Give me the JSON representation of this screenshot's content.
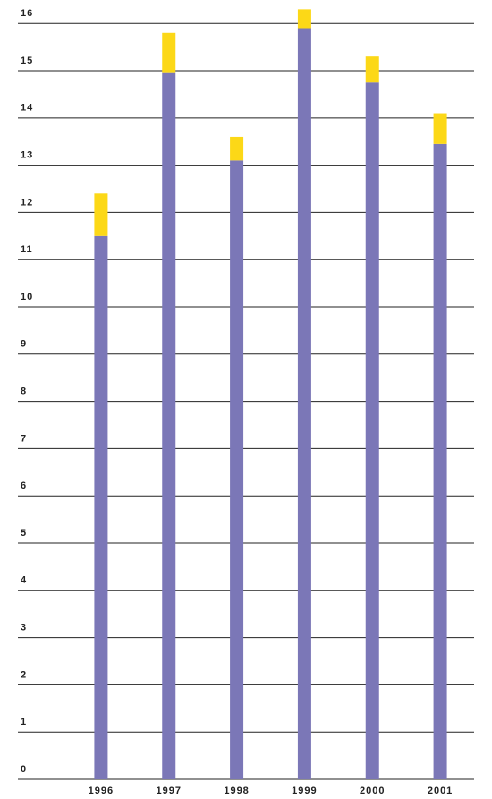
{
  "chart_data": {
    "type": "stacked_bar",
    "categories": [
      "1996",
      "1997",
      "1998",
      "1999",
      "2000",
      "2001"
    ],
    "series": [
      {
        "color": "#7b77b7",
        "values": [
          11.5,
          14.95,
          13.1,
          15.9,
          14.75,
          13.45
        ]
      },
      {
        "color": "#fcd817",
        "values": [
          0.9,
          0.85,
          0.5,
          0.4,
          0.55,
          0.65
        ]
      }
    ],
    "ylim": [
      0,
      16.4
    ],
    "yticks": [
      0,
      1,
      2,
      3,
      4,
      5,
      6,
      7,
      8,
      9,
      10,
      11,
      12,
      13,
      14,
      15,
      16
    ],
    "grid": true
  }
}
